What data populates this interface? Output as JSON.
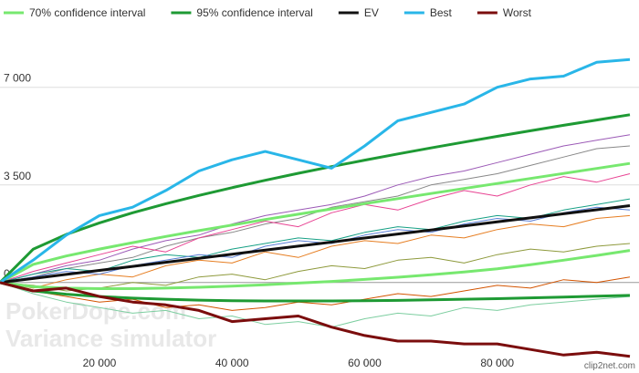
{
  "chart_data": {
    "type": "line",
    "x": [
      5000,
      10000,
      15000,
      20000,
      25000,
      30000,
      35000,
      40000,
      45000,
      50000,
      55000,
      60000,
      65000,
      70000,
      75000,
      80000,
      85000,
      90000,
      95000,
      100000
    ],
    "xlim": [
      5000,
      100000
    ],
    "xticks": [
      {
        "value": 20000,
        "label": "20 000"
      },
      {
        "value": 40000,
        "label": "40 000"
      },
      {
        "value": 60000,
        "label": "60 000"
      },
      {
        "value": 80000,
        "label": "80 000"
      }
    ],
    "ylim": [
      -2950,
      9150
    ],
    "yticks": [
      0,
      {
        "value": 3500,
        "label": "3 500"
      },
      {
        "value": 7000,
        "label": "7 000"
      }
    ],
    "grid": true,
    "legend": "top",
    "watermark": [
      "PokerDope.com",
      "Variance simulator"
    ],
    "badge": "clip2net.com",
    "series": [
      {
        "color": "#9b59b6",
        "values": [
          0,
          300,
          600,
          800,
          1200,
          1500,
          1700,
          2100,
          2400,
          2600,
          2800,
          3100,
          3500,
          3800,
          4000,
          4300,
          4600,
          4900,
          5100,
          5300
        ]
      },
      {
        "color": "#888888",
        "values": [
          0,
          200,
          500,
          700,
          900,
          1300,
          1600,
          1800,
          2100,
          2300,
          2700,
          2900,
          3100,
          3500,
          3700,
          3900,
          4200,
          4500,
          4800,
          4900
        ]
      },
      {
        "color": "#e67e22",
        "values": [
          0,
          -200,
          100,
          300,
          200,
          600,
          800,
          700,
          1100,
          900,
          1300,
          1500,
          1400,
          1700,
          1600,
          1900,
          2100,
          2000,
          2300,
          2400
        ]
      },
      {
        "color": "#e84393",
        "values": [
          0,
          400,
          700,
          1000,
          1300,
          1100,
          1600,
          1900,
          2200,
          2000,
          2500,
          2800,
          2600,
          3000,
          3300,
          3100,
          3500,
          3800,
          3600,
          3900
        ]
      },
      {
        "color": "#8e9a3c",
        "values": [
          0,
          -100,
          -300,
          -200,
          0,
          -100,
          200,
          300,
          100,
          400,
          600,
          500,
          800,
          900,
          700,
          1000,
          1200,
          1100,
          1300,
          1400
        ]
      },
      {
        "color": "#16a085",
        "values": [
          0,
          300,
          500,
          400,
          800,
          1000,
          900,
          1200,
          1400,
          1600,
          1500,
          1800,
          2000,
          1900,
          2200,
          2400,
          2300,
          2600,
          2800,
          3000
        ]
      },
      {
        "color": "#d35400",
        "values": [
          0,
          -300,
          -500,
          -700,
          -600,
          -900,
          -800,
          -1000,
          -900,
          -700,
          -800,
          -600,
          -400,
          -500,
          -300,
          -100,
          -200,
          100,
          0,
          200
        ]
      },
      {
        "color": "#7dcea0",
        "values": [
          0,
          -400,
          -700,
          -900,
          -1100,
          -1000,
          -1300,
          -1200,
          -1500,
          -1400,
          -1600,
          -1300,
          -1100,
          -1200,
          -900,
          -1000,
          -800,
          -700,
          -600,
          -500
        ]
      },
      {
        "color": "#5b7fd6",
        "values": [
          0,
          200,
          400,
          300,
          600,
          800,
          1000,
          900,
          1300,
          1500,
          1400,
          1700,
          1900,
          1800,
          2100,
          2300,
          2200,
          2500,
          2700,
          2600
        ]
      },
      {
        "name": "70% confidence interval",
        "color": "#77e86f",
        "values": [
          0,
          650,
          950,
          1200,
          1430,
          1650,
          1860,
          2060,
          2260,
          2450,
          2640,
          2830,
          3010,
          3190,
          3370,
          3550,
          3730,
          3910,
          4090,
          4270
        ]
      },
      {
        "color": "#77e86f",
        "values": [
          0,
          -150,
          -200,
          -220,
          -220,
          -200,
          -170,
          -130,
          -80,
          -20,
          40,
          110,
          190,
          280,
          380,
          490,
          640,
          800,
          970,
          1150
        ]
      },
      {
        "name": "95% confidence interval",
        "color": "#1e9a34",
        "values": [
          0,
          1195,
          1723,
          2140,
          2501,
          2825,
          3123,
          3402,
          3666,
          3916,
          4156,
          4387,
          4610,
          4827,
          5037,
          5242,
          5442,
          5637,
          5828,
          6016
        ]
      },
      {
        "color": "#1e9a34",
        "values": [
          0,
          -300,
          -420,
          -500,
          -560,
          -600,
          -630,
          -650,
          -660,
          -660,
          -660,
          -650,
          -640,
          -620,
          -600,
          -580,
          -550,
          -520,
          -490,
          -460
        ]
      },
      {
        "name": "EV",
        "color": "#111111",
        "values": [
          0,
          145,
          290,
          435,
          580,
          725,
          870,
          1015,
          1160,
          1305,
          1450,
          1595,
          1740,
          1885,
          2030,
          2175,
          2320,
          2465,
          2610,
          2755
        ]
      },
      {
        "name": "Best",
        "color": "#29b6e8",
        "values": [
          0,
          800,
          1700,
          2400,
          2700,
          3300,
          4000,
          4400,
          4700,
          4400,
          4100,
          4900,
          5800,
          6100,
          6400,
          7000,
          7300,
          7400,
          7900,
          8000
        ]
      },
      {
        "name": "Worst",
        "color": "#7b0d0d",
        "values": [
          0,
          -300,
          -200,
          -500,
          -700,
          -800,
          -1000,
          -1400,
          -1300,
          -1200,
          -1600,
          -1900,
          -2100,
          -2100,
          -2200,
          -2200,
          -2400,
          -2600,
          -2500,
          -2650
        ]
      }
    ]
  }
}
